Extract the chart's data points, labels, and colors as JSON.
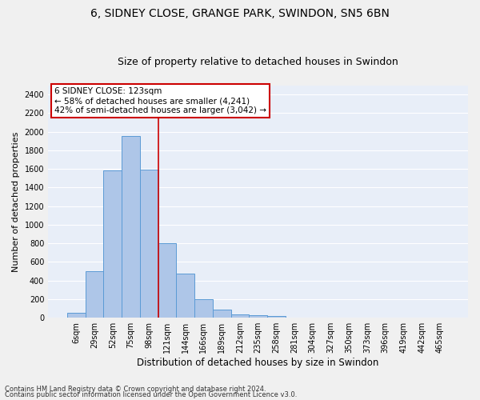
{
  "title1": "6, SIDNEY CLOSE, GRANGE PARK, SWINDON, SN5 6BN",
  "title2": "Size of property relative to detached houses in Swindon",
  "xlabel": "Distribution of detached houses by size in Swindon",
  "ylabel": "Number of detached properties",
  "categories": [
    "6sqm",
    "29sqm",
    "52sqm",
    "75sqm",
    "98sqm",
    "121sqm",
    "144sqm",
    "166sqm",
    "189sqm",
    "212sqm",
    "235sqm",
    "258sqm",
    "281sqm",
    "304sqm",
    "327sqm",
    "350sqm",
    "373sqm",
    "396sqm",
    "419sqm",
    "442sqm",
    "465sqm"
  ],
  "values": [
    55,
    500,
    1580,
    1950,
    1590,
    800,
    475,
    200,
    90,
    35,
    25,
    20,
    0,
    0,
    0,
    0,
    0,
    0,
    0,
    0,
    5
  ],
  "bar_color": "#aec6e8",
  "bar_edge_color": "#5b9bd5",
  "vline_x": 4.5,
  "vline_color": "#cc0000",
  "annotation_box_text": "6 SIDNEY CLOSE: 123sqm\n← 58% of detached houses are smaller (4,241)\n42% of semi-detached houses are larger (3,042) →",
  "ylim": [
    0,
    2500
  ],
  "yticks": [
    0,
    200,
    400,
    600,
    800,
    1000,
    1200,
    1400,
    1600,
    1800,
    2000,
    2200,
    2400
  ],
  "footer1": "Contains HM Land Registry data © Crown copyright and database right 2024.",
  "footer2": "Contains public sector information licensed under the Open Government Licence v3.0.",
  "bg_color": "#e8eef8",
  "grid_color": "#ffffff",
  "fig_bg_color": "#f0f0f0",
  "title1_fontsize": 10,
  "title2_fontsize": 9,
  "tick_fontsize": 7,
  "ylabel_fontsize": 8,
  "xlabel_fontsize": 8.5,
  "footer_fontsize": 6,
  "annot_fontsize": 7.5
}
